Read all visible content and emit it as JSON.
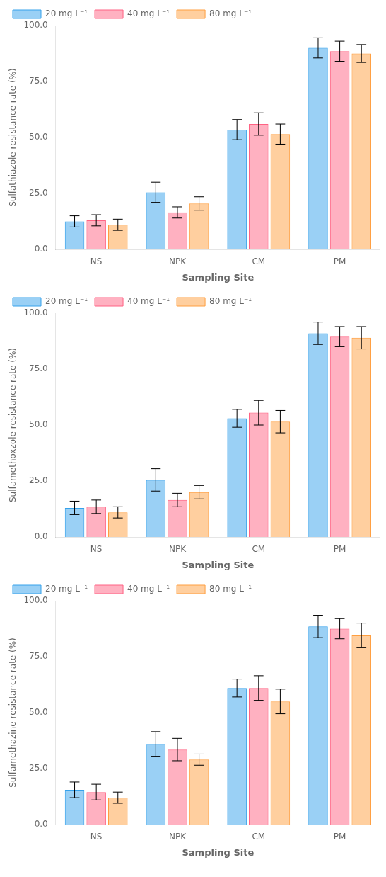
{
  "chart_data": [
    {
      "type": "bar",
      "xlabel": "Sampling Site",
      "ylabel": "Sulfathiazole resistance rate (%)",
      "categories": [
        "NS",
        "NPK",
        "CM",
        "PM"
      ],
      "series": [
        {
          "name": "20 mg L⁻¹",
          "values": [
            12.5,
            25.5,
            53.5,
            90.0
          ],
          "errors": [
            2.5,
            4.5,
            4.5,
            4.5
          ]
        },
        {
          "name": "40 mg L⁻¹",
          "values": [
            13.0,
            16.5,
            56.0,
            88.5
          ],
          "errors": [
            2.5,
            2.5,
            5.0,
            4.5
          ]
        },
        {
          "name": "80 mg L⁻¹",
          "values": [
            11.0,
            20.5,
            51.5,
            87.5
          ],
          "errors": [
            2.5,
            3.0,
            4.5,
            4.0
          ]
        }
      ],
      "ylim": [
        0,
        100
      ],
      "yticks": [
        {
          "value": 0,
          "label": "0.0"
        },
        {
          "value": 25,
          "label": "25.0"
        },
        {
          "value": 50,
          "label": "50.0"
        },
        {
          "value": 75,
          "label": "75.0"
        },
        {
          "value": 100,
          "label": "100.0"
        }
      ],
      "grid": false,
      "legend": "upper left"
    },
    {
      "type": "bar",
      "xlabel": "Sampling Site",
      "ylabel": "Sulfamethoxzole resistance rate (%)",
      "categories": [
        "NS",
        "NPK",
        "CM",
        "PM"
      ],
      "series": [
        {
          "name": "20 mg L⁻¹",
          "values": [
            13.0,
            25.5,
            53.0,
            91.0
          ],
          "errors": [
            3.0,
            5.0,
            4.0,
            5.0
          ]
        },
        {
          "name": "40 mg L⁻¹",
          "values": [
            13.5,
            16.5,
            55.5,
            89.5
          ],
          "errors": [
            3.0,
            3.0,
            5.5,
            4.5
          ]
        },
        {
          "name": "80 mg L⁻¹",
          "values": [
            11.0,
            20.0,
            51.5,
            89.0
          ],
          "errors": [
            2.5,
            3.0,
            5.0,
            5.0
          ]
        }
      ],
      "ylim": [
        0,
        100
      ],
      "yticks": [
        {
          "value": 0,
          "label": "0.0"
        },
        {
          "value": 25,
          "label": "25.0"
        },
        {
          "value": 50,
          "label": "50.0"
        },
        {
          "value": 75,
          "label": "75.0"
        },
        {
          "value": 100,
          "label": "100.0"
        }
      ],
      "grid": false,
      "legend": "upper left"
    },
    {
      "type": "bar",
      "xlabel": "Sampling Site",
      "ylabel": "Sulfamethazine resistance rate (%)",
      "categories": [
        "NS",
        "NPK",
        "CM",
        "PM"
      ],
      "series": [
        {
          "name": "20 mg L⁻¹",
          "values": [
            15.5,
            36.0,
            61.0,
            88.5
          ],
          "errors": [
            3.5,
            5.5,
            4.0,
            5.0
          ]
        },
        {
          "name": "40 mg L⁻¹",
          "values": [
            14.5,
            33.5,
            61.0,
            87.5
          ],
          "errors": [
            3.5,
            5.0,
            5.5,
            4.5
          ]
        },
        {
          "name": "80 mg L⁻¹",
          "values": [
            12.0,
            29.0,
            55.0,
            84.5
          ],
          "errors": [
            2.5,
            2.5,
            5.5,
            5.5
          ]
        }
      ],
      "ylim": [
        0,
        100
      ],
      "yticks": [
        {
          "value": 0,
          "label": "0.0"
        },
        {
          "value": 25,
          "label": "25.0"
        },
        {
          "value": 50,
          "label": "50.0"
        },
        {
          "value": 75,
          "label": "75.0"
        },
        {
          "value": 100,
          "label": "100.0"
        }
      ],
      "grid": false,
      "legend": "upper left"
    }
  ]
}
